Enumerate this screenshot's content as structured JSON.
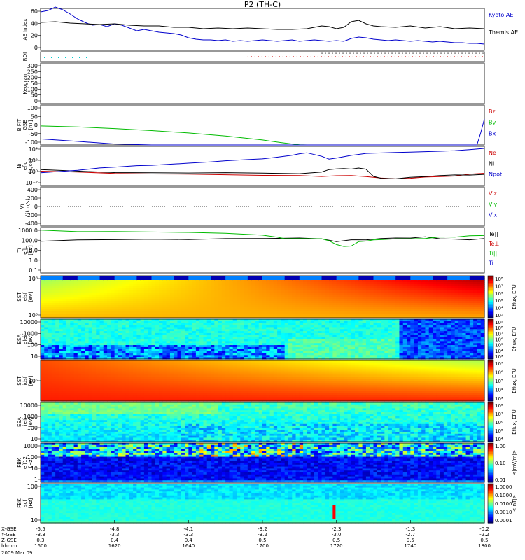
{
  "title": "P2 (TH-C)",
  "date": "2009 Mar 09",
  "chart_data": {
    "type": "line",
    "time_ticks": [
      "1600",
      "1620",
      "1640",
      "1700",
      "1720",
      "1740",
      "1800"
    ],
    "time_values_hhmm": [
      1600,
      1620,
      1640,
      1700,
      1720,
      1740,
      1800
    ],
    "ephemeris_rows": {
      "labels": [
        "X-GSE",
        "Y-GSE",
        "Z-GSE",
        "hhmm"
      ],
      "x_gse": [
        "-5.5",
        "-4.8",
        "-4.1",
        "-3.2",
        "-2.3",
        "-1.3",
        "-0.2"
      ],
      "y_gse": [
        "-3.3",
        "-3.3",
        "-3.3",
        "-3.2",
        "-3.0",
        "-2.7",
        "-2.2"
      ],
      "z_gse": [
        "0.3",
        "0.4",
        "0.4",
        "0.5",
        "0.5",
        "0.5",
        "0.5"
      ]
    },
    "panels": [
      {
        "id": "ae",
        "ylabel": "AE Index",
        "yticks": [
          "60",
          "40",
          "20",
          "0"
        ],
        "ylim": [
          0,
          60
        ],
        "series": [
          {
            "name": "Kyoto AE",
            "color": "#0000cc",
            "t": [
              0,
              2,
              4,
              6,
              8,
              10,
              12,
              14,
              16,
              18,
              20,
              22,
              24,
              26,
              28,
              30,
              32,
              34,
              36,
              38,
              40,
              42,
              44,
              46,
              48,
              50,
              52,
              54,
              56,
              58,
              60,
              62,
              64,
              66,
              68,
              70,
              72,
              74,
              76,
              78,
              80,
              82,
              84,
              86,
              88,
              90,
              92,
              94,
              96,
              98,
              100,
              102,
              104,
              106,
              108,
              110,
              112,
              114,
              116,
              118,
              120
            ],
            "y": [
              55,
              57,
              62,
              58,
              52,
              45,
              40,
              36,
              37,
              34,
              38,
              36,
              32,
              28,
              30,
              28,
              26,
              25,
              24,
              22,
              18,
              16,
              15,
              15,
              14,
              15,
              13,
              14,
              13,
              14,
              15,
              14,
              13,
              14,
              15,
              13,
              14,
              15,
              14,
              13,
              14,
              13,
              17,
              19,
              18,
              16,
              15,
              14,
              15,
              14,
              13,
              14,
              13,
              12,
              13,
              12,
              11,
              11,
              10,
              10,
              9
            ]
          },
          {
            "name": "Themis AE",
            "color": "#000000",
            "t": [
              0,
              4,
              8,
              12,
              16,
              20,
              24,
              28,
              32,
              36,
              40,
              44,
              48,
              52,
              56,
              60,
              64,
              68,
              72,
              74,
              76,
              78,
              80,
              82,
              84,
              86,
              88,
              90,
              92,
              96,
              100,
              104,
              108,
              112,
              116,
              120
            ],
            "y": [
              40,
              41,
              39,
              38,
              37,
              38,
              36,
              35,
              35,
              33,
              33,
              31,
              32,
              31,
              32,
              31,
              30,
              30,
              31,
              33,
              35,
              34,
              31,
              33,
              41,
              43,
              38,
              35,
              34,
              33,
              35,
              32,
              34,
              31,
              32,
              31
            ]
          }
        ]
      },
      {
        "id": "roi",
        "ylabel": "ROI",
        "dotted": [
          {
            "color": "#00cccc",
            "from": 0,
            "to": 14,
            "level": 0.6
          },
          {
            "color": "#cc0000",
            "from": 56,
            "to": 120,
            "level": 0.5
          },
          {
            "color": "#000000",
            "from": 76,
            "to": 120,
            "level": 0.15
          }
        ]
      },
      {
        "id": "keogram",
        "ylabel": "Keogram",
        "yticks": [
          "300",
          "250",
          "200",
          "150",
          "100",
          "50",
          "0"
        ],
        "ylim": [
          0,
          300
        ]
      },
      {
        "id": "bfield",
        "ylabel": "B FIT",
        "ylabel2": "GSE",
        "ylabel3": "[nT]",
        "yticks": [
          "100",
          "50",
          "0",
          "-50",
          "-100"
        ],
        "ylim": [
          -100,
          100
        ],
        "series": [
          {
            "name": "Bz",
            "color": "#cc0000",
            "t": [],
            "y": []
          },
          {
            "name": "By",
            "color": "#00bb00",
            "t": [
              0,
              10,
              20,
              30,
              40,
              50,
              60,
              65,
              68,
              70,
              72
            ],
            "y": [
              -5,
              -10,
              -18,
              -28,
              -40,
              -55,
              -75,
              -88,
              -95,
              -99,
              -100
            ]
          },
          {
            "name": "Bx",
            "color": "#0000cc",
            "t": [
              0,
              10,
              20,
              30,
              34,
              118,
              119,
              120
            ],
            "y": [
              -70,
              -82,
              -95,
              -100,
              -100,
              -100,
              -40,
              30
            ]
          }
        ]
      },
      {
        "id": "density",
        "ylabel": "Ni",
        "ylabel2": "eflc",
        "ylabel3": "[1/cc]",
        "yticks": [
          "10^4",
          "10^2",
          "10^0",
          "10^-2"
        ],
        "ylog": [
          -3,
          5
        ],
        "series": [
          {
            "name": "Ne",
            "color": "#cc0000",
            "t": [
              0,
              10,
              20,
              30,
              40,
              50,
              60,
              70,
              76,
              80,
              84,
              88,
              92,
              96,
              100,
              104,
              108,
              112,
              116,
              120
            ],
            "y": [
              0.0,
              -0.3,
              -0.5,
              -0.6,
              -0.7,
              -0.8,
              -0.9,
              -1.0,
              -1.2,
              -1.0,
              -1.0,
              -1.2,
              -1.5,
              -1.6,
              -1.5,
              -1.3,
              -1.2,
              -1.0,
              -0.7,
              -0.5
            ]
          },
          {
            "name": "Ni",
            "color": "#000000",
            "t": [
              0,
              10,
              20,
              30,
              40,
              50,
              60,
              70,
              76,
              78,
              80,
              82,
              84,
              86,
              88,
              90,
              92,
              96,
              100,
              104,
              108,
              112,
              116,
              120
            ],
            "y": [
              0.2,
              -0.1,
              -0.3,
              -0.4,
              -0.5,
              -0.4,
              -0.5,
              -0.6,
              -0.3,
              0.2,
              0.4,
              0.5,
              0.3,
              0.6,
              0.4,
              -1.1,
              -1.5,
              -1.6,
              -1.4,
              -1.2,
              -1.0,
              -0.9,
              -0.8,
              -0.7
            ]
          },
          {
            "name": "Npot",
            "color": "#0000cc",
            "t": [
              0,
              10,
              16,
              20,
              26,
              30,
              36,
              40,
              46,
              50,
              56,
              60,
              64,
              68,
              70,
              72,
              76,
              78,
              80,
              84,
              88,
              90,
              96,
              100,
              104,
              108,
              112,
              116,
              120
            ],
            "y": [
              -0.4,
              0.1,
              0.6,
              0.8,
              1.0,
              1.2,
              1.4,
              1.6,
              1.8,
              2.0,
              2.3,
              2.5,
              2.8,
              3.2,
              3.5,
              3.7,
              3.0,
              2.4,
              2.6,
              3.2,
              3.5,
              3.6,
              3.7,
              3.8,
              3.9,
              4.0,
              4.1,
              4.3,
              4.5
            ]
          }
        ]
      },
      {
        "id": "velocity",
        "ylabel": "Vi",
        "ylabel2": "[km/s]",
        "yticks": [
          "400",
          "200",
          "0",
          "-200",
          "-400"
        ],
        "ylim": [
          -500,
          500
        ],
        "series": [
          {
            "name": "Viz",
            "color": "#cc0000"
          },
          {
            "name": "Viy",
            "color": "#00bb00"
          },
          {
            "name": "Vix",
            "color": "#0000cc"
          }
        ]
      },
      {
        "id": "temperature",
        "ylabel": "Ti",
        "ylabel2": "eflc",
        "ylabel3": "[eV]",
        "yticks": [
          "1000.0",
          "100.0",
          "10.0",
          "1.0",
          "0.1"
        ],
        "ylog": [
          -1.5,
          3.5
        ],
        "series": [
          {
            "name": "Te||",
            "color": "#000000",
            "t": [
              0,
              10,
              20,
              30,
              40,
              50,
              60,
              70,
              76,
              80,
              84,
              88,
              92,
              96,
              100,
              104,
              108,
              112,
              116,
              120
            ],
            "y": [
              2.0,
              2.1,
              2.2,
              2.2,
              2.2,
              2.3,
              2.3,
              2.3,
              2.2,
              2.0,
              2.1,
              2.2,
              2.3,
              2.4,
              2.4,
              2.4,
              2.3,
              2.2,
              2.2,
              2.3
            ]
          },
          {
            "name": "Te⊥",
            "color": "#cc0000"
          },
          {
            "name": "Ti||",
            "color": "#00bb00",
            "t": [
              0,
              10,
              20,
              30,
              40,
              50,
              60,
              64,
              66,
              70,
              76,
              78,
              80,
              82,
              84,
              86,
              88,
              90,
              92,
              96,
              100,
              104,
              108,
              112,
              116,
              120
            ],
            "y": [
              3.2,
              3.1,
              3.0,
              2.95,
              2.9,
              2.8,
              2.6,
              2.4,
              2.3,
              2.35,
              2.3,
              2.1,
              1.7,
              1.4,
              1.5,
              1.9,
              2.0,
              2.1,
              2.2,
              2.2,
              2.3,
              2.3,
              2.4,
              2.5,
              2.6,
              2.7
            ]
          },
          {
            "name": "Ti⊥",
            "color": "#0000cc"
          }
        ]
      },
      {
        "id": "sst_e",
        "ylabel": "SST",
        "ylabel2": "elsf",
        "ylabel3": "[eV]",
        "yticks": [
          "10^6",
          "10^5"
        ],
        "spectro": "sst"
      },
      {
        "id": "esa_e",
        "ylabel": "ESA",
        "ylabel2": "eleif",
        "ylabel3": "[eV]",
        "yticks": [
          "10000",
          "1000",
          "100",
          "10"
        ],
        "spectro": "esa"
      },
      {
        "id": "sst_i",
        "ylabel": "SST",
        "ylabel2": "idsf",
        "ylabel3": "[eV]",
        "yticks": [
          "10^5"
        ],
        "spectro": "sst"
      },
      {
        "id": "esa_i",
        "ylabel": "ESA",
        "ylabel2": "ieif",
        "ylabel3": "[eV]",
        "yticks": [
          "10000",
          "1000",
          "100",
          "10"
        ],
        "spectro": "esa"
      },
      {
        "id": "fbk_b",
        "ylabel": "FBK",
        "ylabel2": "eff12",
        "ylabel3": "[Hz]",
        "yticks": [
          "1000",
          "100",
          "10",
          "1"
        ],
        "spectro": "fbk"
      },
      {
        "id": "fbk_e",
        "ylabel": "FBK",
        "ylabel2": "scf",
        "ylabel3": "[Hz]",
        "yticks": [
          "100",
          "10"
        ],
        "spectro": "fbk2"
      }
    ],
    "colorbars": [
      {
        "ticks": [
          "10^8",
          "10^7",
          "10^6",
          "10^5",
          "10^4",
          "10^3"
        ],
        "label": "Eflux, EFU"
      },
      {
        "ticks": [
          "10^9",
          "10^8",
          "10^7",
          "10^6",
          "10^5",
          "10^4",
          "10^3"
        ],
        "label": "Eflux, EFU"
      },
      {
        "ticks": [
          "10^7",
          "10^6",
          "10^5",
          "10^4",
          "10^3"
        ],
        "label": "Eflux, EFU"
      },
      {
        "ticks": [
          "10^8",
          "10^7",
          "10^6",
          "10^5",
          "10^4"
        ],
        "label": "Eflux, EFU"
      },
      {
        "ticks": [
          "1.00",
          "0.10",
          "0.01"
        ],
        "label": "<|mV/m|>"
      },
      {
        "ticks": [
          "1.0000",
          "0.1000",
          "0.0100",
          "0.0010",
          "0.0001"
        ],
        "label": "<|nT|>"
      }
    ]
  }
}
